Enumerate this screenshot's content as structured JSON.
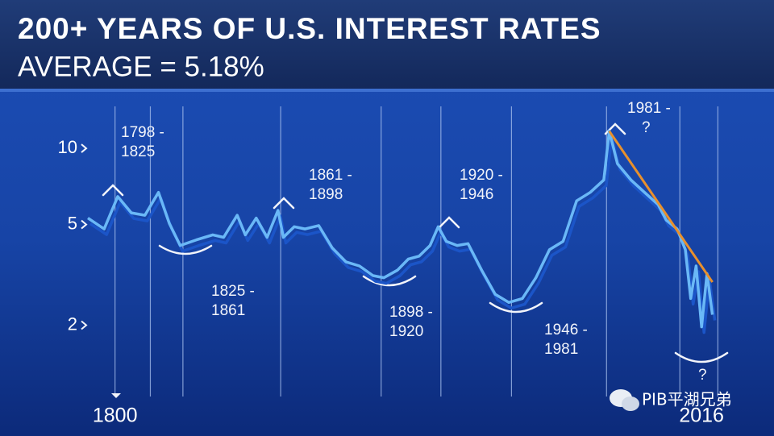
{
  "chart_data": {
    "type": "line",
    "title": "200+ YEARS OF U.S. INTEREST RATES",
    "subtitle": "AVERAGE = 5.18%",
    "x": [
      1790,
      1796,
      1801,
      1806,
      1811,
      1816,
      1820,
      1824,
      1830,
      1836,
      1840,
      1845,
      1848,
      1852,
      1856,
      1860,
      1862,
      1866,
      1870,
      1875,
      1880,
      1885,
      1890,
      1895,
      1899,
      1904,
      1908,
      1912,
      1916,
      1919,
      1922,
      1926,
      1930,
      1935,
      1940,
      1945,
      1950,
      1955,
      1960,
      1965,
      1970,
      1975,
      1980,
      1982,
      1985,
      1990,
      1995,
      2000,
      2003,
      2007,
      2010,
      2012,
      2014,
      2016,
      2018,
      2020
    ],
    "series": [
      {
        "name": "Interest rate",
        "color": "#6ab8f7",
        "values": [
          5.3,
          4.8,
          6.45,
          5.56,
          5.44,
          6.7,
          5.05,
          4.13,
          4.35,
          4.55,
          4.45,
          5.44,
          4.55,
          5.3,
          4.45,
          5.69,
          4.45,
          4.9,
          4.8,
          4.95,
          4.04,
          3.56,
          3.43,
          3.14,
          3.08,
          3.3,
          3.65,
          3.75,
          4.13,
          4.9,
          4.29,
          4.13,
          4.2,
          3.3,
          2.65,
          2.46,
          2.55,
          3.08,
          3.98,
          4.29,
          6.2,
          6.7,
          7.5,
          11.7,
          8.7,
          7.5,
          6.7,
          5.99,
          5.2,
          4.8,
          3.98,
          2.55,
          3.43,
          1.97,
          3.2,
          2.2
        ]
      }
    ],
    "trend": {
      "color": "#e8902c",
      "x": [
        1982,
        2020
      ],
      "values": [
        11.7,
        2.96
      ]
    },
    "xlim": [
      1790,
      2040
    ],
    "xticks": [
      1800,
      2016
    ],
    "x_grid": [
      1800,
      1813,
      1825,
      1861,
      1898,
      1920,
      1946,
      1981,
      2008,
      2022
    ],
    "ylim": [
      1.1,
      16
    ],
    "yticks": [
      2,
      5,
      10
    ],
    "log_scale": true,
    "annotations": [
      {
        "text": [
          "1798 -",
          "1825"
        ]
      },
      {
        "text": [
          "1825 -",
          "1861"
        ]
      },
      {
        "text": [
          "1861 -",
          "1898"
        ]
      },
      {
        "text": [
          "1898 -",
          "1920"
        ]
      },
      {
        "text": [
          "1920 -",
          "1946"
        ]
      },
      {
        "text": [
          "1946 -",
          "1981"
        ]
      },
      {
        "text": [
          "1981 -",
          "?"
        ]
      },
      {
        "text": [
          "?"
        ]
      }
    ],
    "watermark": "PIB平湖兄弟"
  }
}
